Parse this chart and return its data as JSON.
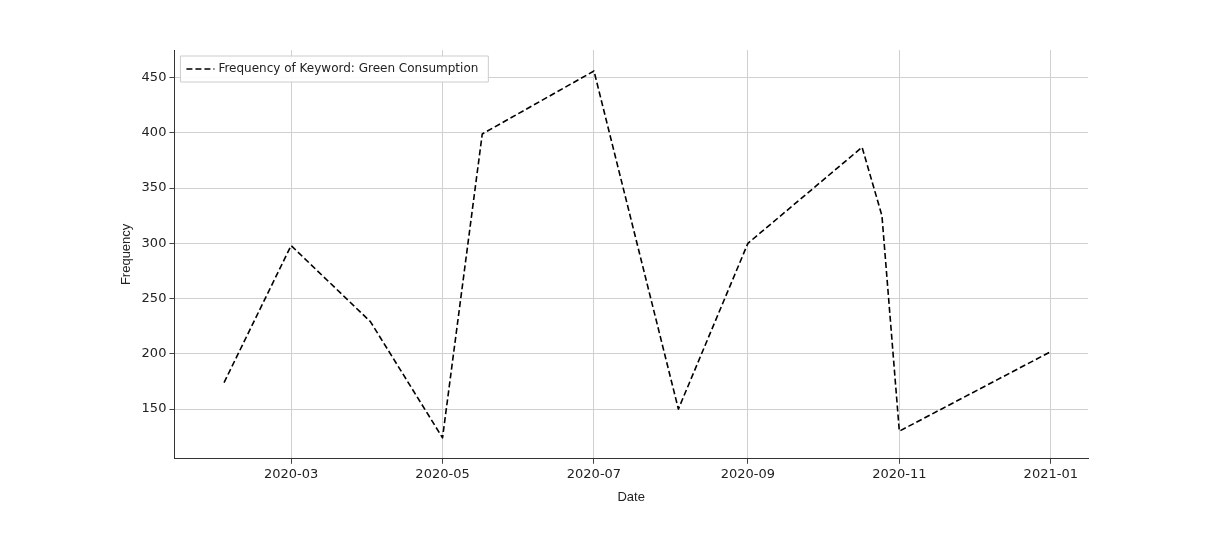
{
  "chart_data": {
    "type": "line",
    "xlabel": "Date",
    "ylabel": "Frequency",
    "x": [
      "2020-02-03",
      "2020-03-01",
      "2020-04-02",
      "2020-05-01",
      "2020-05-17",
      "2020-07-01",
      "2020-08-04",
      "2020-09-01",
      "2020-10-17",
      "2020-10-25",
      "2020-11-01",
      "2021-01-01"
    ],
    "series": [
      {
        "name": "Frequency of Keyword: Green Consumption",
        "color": "#000000",
        "values": [
          174,
          298,
          229,
          124,
          399,
          456,
          150,
          300,
          387,
          325,
          130,
          202
        ]
      }
    ],
    "xlim": [
      "2020-01-14",
      "2021-01-16"
    ],
    "xticks": [
      {
        "value": "2020-03",
        "label": "2020-03"
      },
      {
        "value": "2020-05",
        "label": "2020-05"
      },
      {
        "value": "2020-07",
        "label": "2020-07"
      },
      {
        "value": "2020-09",
        "label": "2020-09"
      },
      {
        "value": "2020-11",
        "label": "2020-11"
      },
      {
        "value": "2021-01",
        "label": "2021-01"
      }
    ],
    "ylim": [
      105,
      475
    ],
    "yticks": [
      150,
      200,
      250,
      300,
      350,
      400,
      450
    ],
    "grid": true,
    "legend": "top left",
    "marker": "none",
    "line_style": "dashed"
  }
}
